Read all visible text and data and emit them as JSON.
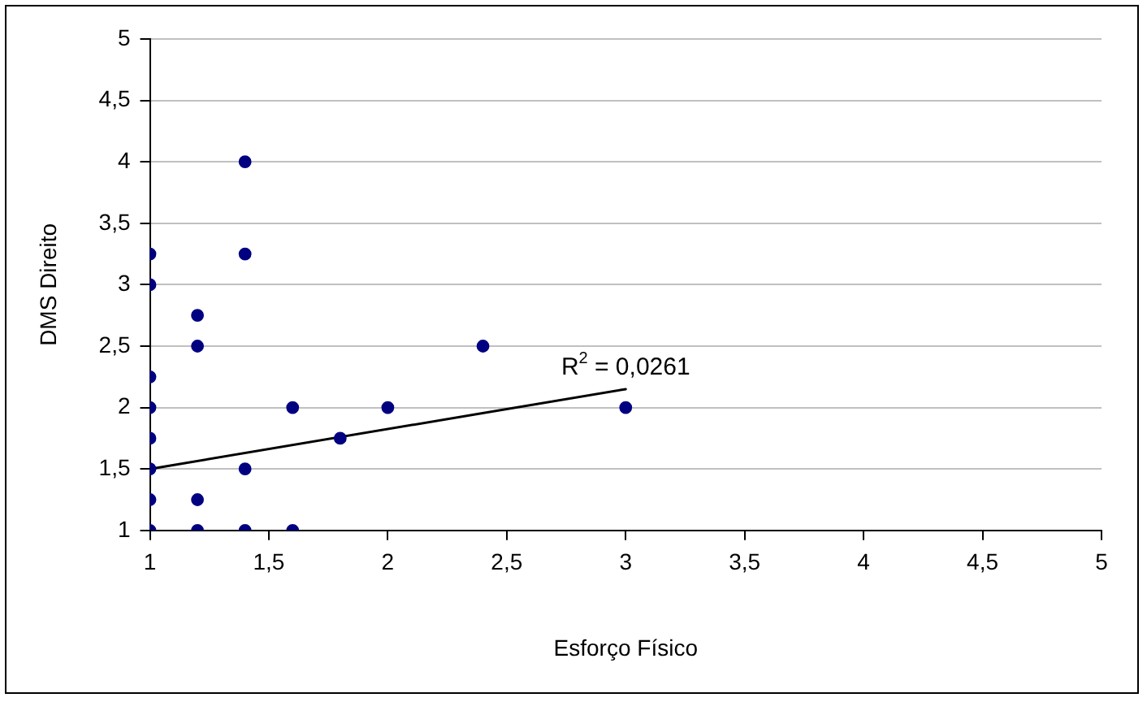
{
  "chart_data": {
    "type": "scatter",
    "xlabel": "Esforço Físico",
    "ylabel": "DMS Direito",
    "xlim": [
      1,
      5
    ],
    "xticks": [
      1,
      {
        "value": 1.5,
        "label": "1,5"
      },
      2,
      {
        "value": 2.5,
        "label": "2,5"
      },
      3,
      {
        "value": 3.5,
        "label": "3,5"
      },
      4,
      {
        "value": 4.5,
        "label": "4,5"
      },
      5
    ],
    "ylim": [
      1,
      5
    ],
    "yticks": [
      1,
      {
        "value": 1.5,
        "label": "1,5"
      },
      2,
      {
        "value": 2.5,
        "label": "2,5"
      },
      3,
      {
        "value": 3.5,
        "label": "3,5"
      },
      4,
      {
        "value": 4.5,
        "label": "4,5"
      },
      5
    ],
    "grid": "y",
    "legend": false,
    "marker": "circle",
    "series": [
      {
        "color": "#000080",
        "x": [
          1,
          1,
          1,
          1,
          1,
          1,
          1,
          1,
          1.2,
          1.2,
          1.2,
          1.2,
          1.4,
          1.4,
          1.4,
          1.4,
          1.6,
          1.6,
          1.8,
          2,
          2.4,
          3
        ],
        "values": [
          1,
          1.25,
          1.5,
          1.75,
          2,
          2.25,
          3,
          3.25,
          1,
          1.25,
          2.5,
          2.75,
          1,
          1.5,
          3.25,
          4,
          1,
          2,
          1.75,
          2,
          2.5,
          2
        ]
      },
      {
        "type": "line",
        "color": "#000000",
        "marker": "none",
        "line_style": "solid",
        "x": [
          1,
          3
        ],
        "values": [
          1.5,
          2.15
        ]
      }
    ],
    "annotations": [
      {
        "text": "R$^{2}$ = 0,0261",
        "x": 3,
        "y": 2.15
      }
    ]
  }
}
